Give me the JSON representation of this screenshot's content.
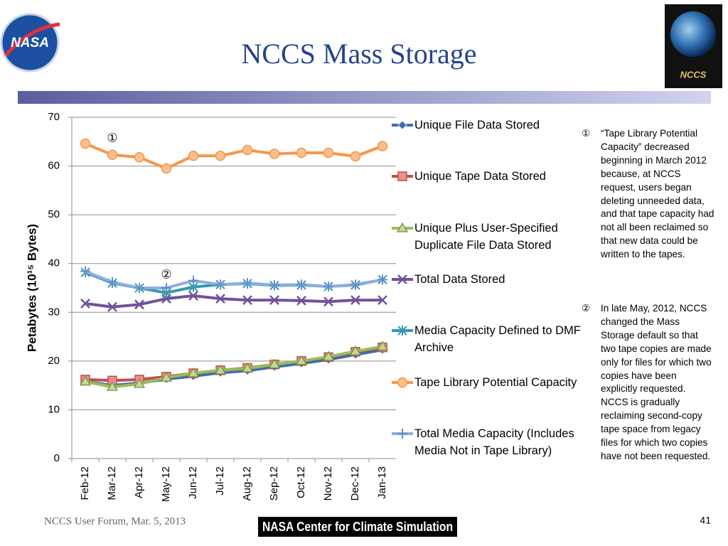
{
  "header": {
    "title": "NCCS Mass Storage",
    "logo_left": "NASA",
    "logo_right": "NCCS"
  },
  "chart_data": {
    "type": "line",
    "y_label": "Petabytes (10¹⁵ Bytes)",
    "categories": [
      "Feb-12",
      "Mar-12",
      "Apr-12",
      "May-12",
      "Jun-12",
      "Jul-12",
      "Aug-12",
      "Sep-12",
      "Oct-12",
      "Nov-12",
      "Dec-12",
      "Jan-13"
    ],
    "ylim": [
      0,
      70
    ],
    "yticks": [
      0,
      10,
      20,
      30,
      40,
      50,
      60,
      70
    ],
    "grid": true,
    "annotations": [
      "①",
      "②"
    ],
    "series": [
      {
        "name": "Unique File Data Stored",
        "color": "#3d6db0",
        "marker": "diamond",
        "values": [
          15.8,
          15.0,
          15.5,
          16.3,
          16.9,
          17.6,
          18.0,
          18.8,
          19.5,
          20.3,
          21.3,
          22.3
        ]
      },
      {
        "name": "Unique Tape Data Stored",
        "color": "#c0504d",
        "marker": "square",
        "values": [
          16.2,
          16.0,
          16.2,
          16.8,
          17.5,
          18.1,
          18.6,
          19.3,
          20.0,
          20.8,
          21.9,
          22.8
        ]
      },
      {
        "name": "Unique Plus User-Specified Duplicate File Data Stored",
        "color": "#9bbb59",
        "marker": "triangle",
        "values": [
          15.8,
          14.7,
          15.3,
          16.6,
          17.5,
          18.1,
          18.5,
          19.3,
          20.0,
          20.9,
          22.0,
          23.0
        ]
      },
      {
        "name": "Total Data Stored",
        "color": "#6f529b",
        "marker": "x",
        "values": [
          31.8,
          31.1,
          31.6,
          32.8,
          33.4,
          32.8,
          32.5,
          32.5,
          32.4,
          32.2,
          32.5,
          32.5
        ]
      },
      {
        "name": "Media Capacity Defined to DMF Archive",
        "color": "#3599b1",
        "marker": "asterisk",
        "values": [
          38.2,
          36.0,
          35.0,
          34.0,
          35.2,
          35.7,
          35.9,
          35.5,
          35.6,
          35.3,
          35.6,
          36.7
        ]
      },
      {
        "name": "Tape Library Potential Capacity",
        "color": "#f79646",
        "marker": "circle",
        "values": [
          64.6,
          62.3,
          61.8,
          59.5,
          62.1,
          62.1,
          63.3,
          62.5,
          62.7,
          62.7,
          62.0,
          64.1
        ]
      },
      {
        "name": "Total Media Capacity (Includes Media Not in Tape Library)",
        "color": "#8eaede",
        "marker": "plus",
        "values": [
          38.4,
          36.2,
          35.0,
          35.0,
          36.5,
          35.7,
          36.0,
          35.6,
          35.7,
          35.3,
          35.7,
          36.7
        ]
      }
    ],
    "notes": [
      {
        "marker": "①",
        "text": "“Tape Library Potential Capacity” decreased beginning in March 2012 because, at NCCS request, users began deleting unneeded data, and that tape capacity had not all been reclaimed so that new data could be written to the tapes."
      },
      {
        "marker": "②",
        "text": "In late May, 2012, NCCS changed the Mass Storage default so that two tape copies are made only for files for which two copies have been explicitly requested. NCCS is gradually reclaiming second-copy tape space from legacy files for which two copies have not been requested."
      }
    ]
  },
  "footer": {
    "left": "NCCS User Forum, Mar. 5, 2013",
    "center": "NASA Center for Climate Simulation",
    "page": "41"
  }
}
